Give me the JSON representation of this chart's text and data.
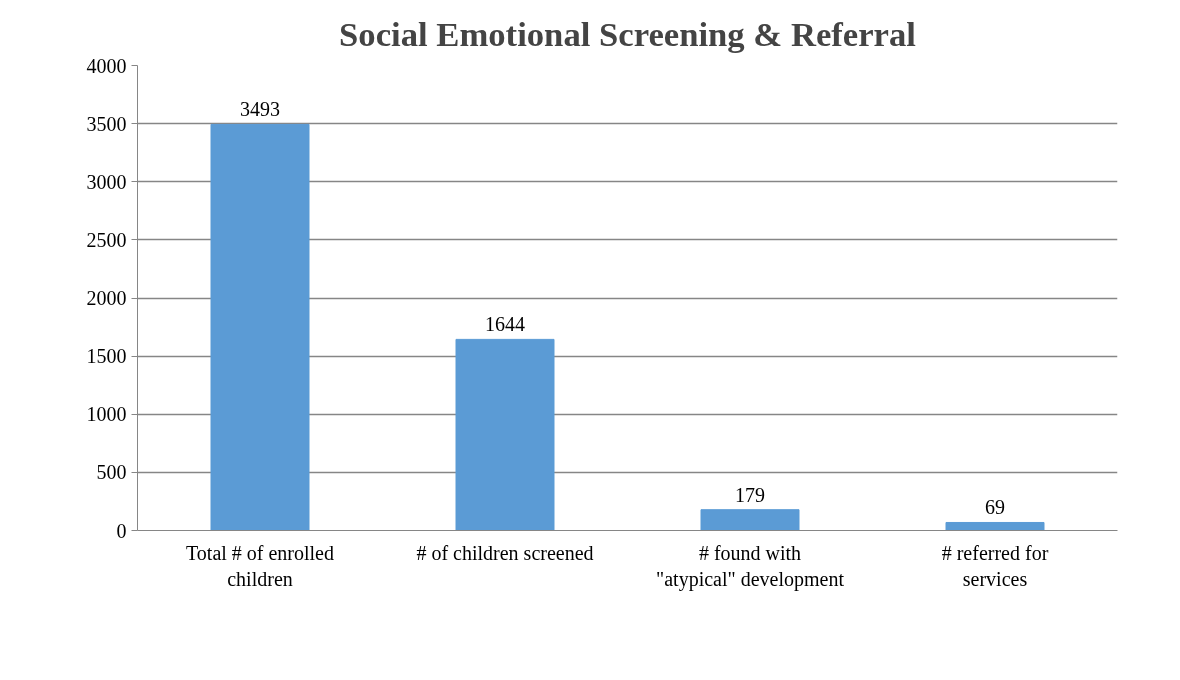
{
  "chart_data": {
    "type": "bar",
    "title": "Social Emotional Screening & Referral",
    "categories": [
      "Total # of enrolled children",
      "# of children screened",
      "# found with \"atypical\" development",
      "# referred for services"
    ],
    "values": [
      3493,
      1644,
      179,
      69
    ],
    "color": "#5b9bd5",
    "ylim": [
      0,
      4000
    ],
    "yticks": [
      0,
      500,
      1000,
      1500,
      2000,
      2500,
      3000,
      3500,
      4000
    ],
    "grid": "y",
    "data_labels": true
  }
}
